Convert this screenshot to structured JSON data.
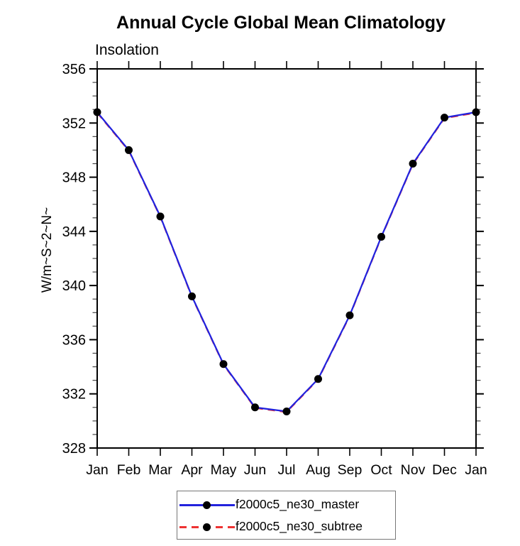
{
  "title": "Annual Cycle Global Mean Climatology",
  "subtitle": "Insolation",
  "chart_data": {
    "type": "line",
    "title": "Annual Cycle Global Mean Climatology",
    "subtitle": "Insolation",
    "ylabel": "W/m~S~2~N~",
    "xlabel": "",
    "categories": [
      "Jan",
      "Feb",
      "Mar",
      "Apr",
      "May",
      "Jun",
      "Jul",
      "Aug",
      "Sep",
      "Oct",
      "Nov",
      "Dec",
      "Jan"
    ],
    "ylim": [
      328,
      356
    ],
    "yticks_major": [
      328,
      332,
      336,
      340,
      344,
      348,
      352,
      356
    ],
    "ytick_minor_step": 1,
    "grid": false,
    "legend_position": "bottom-center",
    "series": [
      {
        "name": "f2000c5_ne30_master",
        "color": "#2222dd",
        "line_style": "solid",
        "marker": "filled-circle",
        "marker_color": "#000000",
        "values": [
          352.8,
          350.0,
          345.1,
          339.2,
          334.2,
          331.0,
          330.7,
          333.1,
          337.8,
          343.6,
          349.0,
          352.4,
          352.8
        ]
      },
      {
        "name": "f2000c5_ne30_subtree",
        "color": "#ee3333",
        "line_style": "dashed",
        "marker": "filled-circle",
        "marker_color": "#000000",
        "values": [
          352.8,
          350.0,
          345.1,
          339.2,
          334.2,
          331.0,
          330.7,
          333.1,
          337.8,
          343.6,
          349.0,
          352.4,
          352.8
        ]
      }
    ]
  },
  "colors": {
    "axis": "#000000",
    "minor_tick": "#444444",
    "master_line": "#2222dd",
    "subtree_line": "#ee3333",
    "marker": "#000000",
    "background": "#ffffff"
  }
}
